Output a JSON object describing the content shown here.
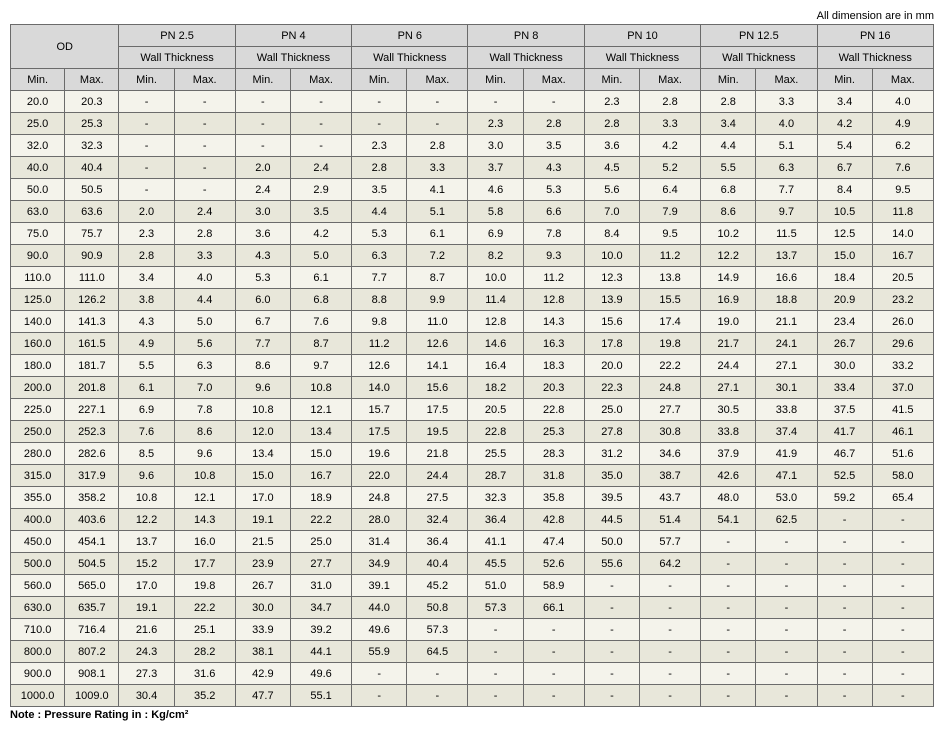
{
  "caption": "All dimension are in mm",
  "footnote": "Note : Pressure Rating in : Kg/cm²",
  "header": {
    "od": "OD",
    "groups": [
      "PN 2.5",
      "PN 4",
      "PN 6",
      "PN 8",
      "PN 10",
      "PN 12.5",
      "PN 16"
    ],
    "subhead": "Wall Thickness",
    "min": "Min.",
    "max": "Max."
  },
  "rows": [
    [
      "20.0",
      "20.3",
      "-",
      "-",
      "-",
      "-",
      "-",
      "-",
      "-",
      "-",
      "2.3",
      "2.8",
      "2.8",
      "3.3",
      "3.4",
      "4.0"
    ],
    [
      "25.0",
      "25.3",
      "-",
      "-",
      "-",
      "-",
      "-",
      "-",
      "2.3",
      "2.8",
      "2.8",
      "3.3",
      "3.4",
      "4.0",
      "4.2",
      "4.9"
    ],
    [
      "32.0",
      "32.3",
      "-",
      "-",
      "-",
      "-",
      "2.3",
      "2.8",
      "3.0",
      "3.5",
      "3.6",
      "4.2",
      "4.4",
      "5.1",
      "5.4",
      "6.2"
    ],
    [
      "40.0",
      "40.4",
      "-",
      "-",
      "2.0",
      "2.4",
      "2.8",
      "3.3",
      "3.7",
      "4.3",
      "4.5",
      "5.2",
      "5.5",
      "6.3",
      "6.7",
      "7.6"
    ],
    [
      "50.0",
      "50.5",
      "-",
      "-",
      "2.4",
      "2.9",
      "3.5",
      "4.1",
      "4.6",
      "5.3",
      "5.6",
      "6.4",
      "6.8",
      "7.7",
      "8.4",
      "9.5"
    ],
    [
      "63.0",
      "63.6",
      "2.0",
      "2.4",
      "3.0",
      "3.5",
      "4.4",
      "5.1",
      "5.8",
      "6.6",
      "7.0",
      "7.9",
      "8.6",
      "9.7",
      "10.5",
      "11.8"
    ],
    [
      "75.0",
      "75.7",
      "2.3",
      "2.8",
      "3.6",
      "4.2",
      "5.3",
      "6.1",
      "6.9",
      "7.8",
      "8.4",
      "9.5",
      "10.2",
      "11.5",
      "12.5",
      "14.0"
    ],
    [
      "90.0",
      "90.9",
      "2.8",
      "3.3",
      "4.3",
      "5.0",
      "6.3",
      "7.2",
      "8.2",
      "9.3",
      "10.0",
      "11.2",
      "12.2",
      "13.7",
      "15.0",
      "16.7"
    ],
    [
      "110.0",
      "111.0",
      "3.4",
      "4.0",
      "5.3",
      "6.1",
      "7.7",
      "8.7",
      "10.0",
      "11.2",
      "12.3",
      "13.8",
      "14.9",
      "16.6",
      "18.4",
      "20.5"
    ],
    [
      "125.0",
      "126.2",
      "3.8",
      "4.4",
      "6.0",
      "6.8",
      "8.8",
      "9.9",
      "11.4",
      "12.8",
      "13.9",
      "15.5",
      "16.9",
      "18.8",
      "20.9",
      "23.2"
    ],
    [
      "140.0",
      "141.3",
      "4.3",
      "5.0",
      "6.7",
      "7.6",
      "9.8",
      "11.0",
      "12.8",
      "14.3",
      "15.6",
      "17.4",
      "19.0",
      "21.1",
      "23.4",
      "26.0"
    ],
    [
      "160.0",
      "161.5",
      "4.9",
      "5.6",
      "7.7",
      "8.7",
      "11.2",
      "12.6",
      "14.6",
      "16.3",
      "17.8",
      "19.8",
      "21.7",
      "24.1",
      "26.7",
      "29.6"
    ],
    [
      "180.0",
      "181.7",
      "5.5",
      "6.3",
      "8.6",
      "9.7",
      "12.6",
      "14.1",
      "16.4",
      "18.3",
      "20.0",
      "22.2",
      "24.4",
      "27.1",
      "30.0",
      "33.2"
    ],
    [
      "200.0",
      "201.8",
      "6.1",
      "7.0",
      "9.6",
      "10.8",
      "14.0",
      "15.6",
      "18.2",
      "20.3",
      "22.3",
      "24.8",
      "27.1",
      "30.1",
      "33.4",
      "37.0"
    ],
    [
      "225.0",
      "227.1",
      "6.9",
      "7.8",
      "10.8",
      "12.1",
      "15.7",
      "17.5",
      "20.5",
      "22.8",
      "25.0",
      "27.7",
      "30.5",
      "33.8",
      "37.5",
      "41.5"
    ],
    [
      "250.0",
      "252.3",
      "7.6",
      "8.6",
      "12.0",
      "13.4",
      "17.5",
      "19.5",
      "22.8",
      "25.3",
      "27.8",
      "30.8",
      "33.8",
      "37.4",
      "41.7",
      "46.1"
    ],
    [
      "280.0",
      "282.6",
      "8.5",
      "9.6",
      "13.4",
      "15.0",
      "19.6",
      "21.8",
      "25.5",
      "28.3",
      "31.2",
      "34.6",
      "37.9",
      "41.9",
      "46.7",
      "51.6"
    ],
    [
      "315.0",
      "317.9",
      "9.6",
      "10.8",
      "15.0",
      "16.7",
      "22.0",
      "24.4",
      "28.7",
      "31.8",
      "35.0",
      "38.7",
      "42.6",
      "47.1",
      "52.5",
      "58.0"
    ],
    [
      "355.0",
      "358.2",
      "10.8",
      "12.1",
      "17.0",
      "18.9",
      "24.8",
      "27.5",
      "32.3",
      "35.8",
      "39.5",
      "43.7",
      "48.0",
      "53.0",
      "59.2",
      "65.4"
    ],
    [
      "400.0",
      "403.6",
      "12.2",
      "14.3",
      "19.1",
      "22.2",
      "28.0",
      "32.4",
      "36.4",
      "42.8",
      "44.5",
      "51.4",
      "54.1",
      "62.5",
      "-",
      "-"
    ],
    [
      "450.0",
      "454.1",
      "13.7",
      "16.0",
      "21.5",
      "25.0",
      "31.4",
      "36.4",
      "41.1",
      "47.4",
      "50.0",
      "57.7",
      "-",
      "-",
      "-",
      "-"
    ],
    [
      "500.0",
      "504.5",
      "15.2",
      "17.7",
      "23.9",
      "27.7",
      "34.9",
      "40.4",
      "45.5",
      "52.6",
      "55.6",
      "64.2",
      "-",
      "-",
      "-",
      "-"
    ],
    [
      "560.0",
      "565.0",
      "17.0",
      "19.8",
      "26.7",
      "31.0",
      "39.1",
      "45.2",
      "51.0",
      "58.9",
      "-",
      "-",
      "-",
      "-",
      "-",
      "-"
    ],
    [
      "630.0",
      "635.7",
      "19.1",
      "22.2",
      "30.0",
      "34.7",
      "44.0",
      "50.8",
      "57.3",
      "66.1",
      "-",
      "-",
      "-",
      "-",
      "-",
      "-"
    ],
    [
      "710.0",
      "716.4",
      "21.6",
      "25.1",
      "33.9",
      "39.2",
      "49.6",
      "57.3",
      "-",
      "-",
      "-",
      "-",
      "-",
      "-",
      "-",
      "-"
    ],
    [
      "800.0",
      "807.2",
      "24.3",
      "28.2",
      "38.1",
      "44.1",
      "55.9",
      "64.5",
      "-",
      "-",
      "-",
      "-",
      "-",
      "-",
      "-",
      "-"
    ],
    [
      "900.0",
      "908.1",
      "27.3",
      "31.6",
      "42.9",
      "49.6",
      "-",
      "-",
      "-",
      "-",
      "-",
      "-",
      "-",
      "-",
      "-",
      "-"
    ],
    [
      "1000.0",
      "1009.0",
      "30.4",
      "35.2",
      "47.7",
      "55.1",
      "-",
      "-",
      "-",
      "-",
      "-",
      "-",
      "-",
      "-",
      "-",
      "-"
    ]
  ]
}
